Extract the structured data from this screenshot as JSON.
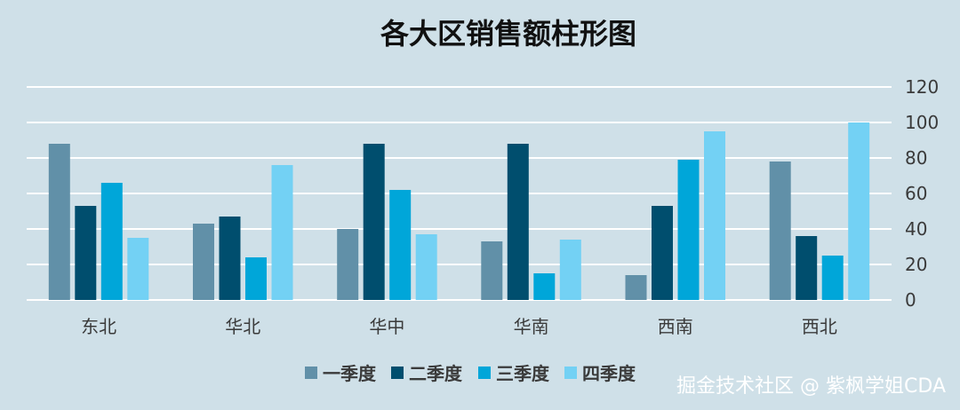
{
  "chart_data": {
    "type": "bar",
    "title": "各大区销售额柱形图",
    "xlabel": "",
    "ylabel": "",
    "categories": [
      "东北",
      "华北",
      "华中",
      "华南",
      "西南",
      "西北"
    ],
    "series": [
      {
        "name": "一季度",
        "color": "#6190a8",
        "values": [
          88,
          43,
          40,
          33,
          14,
          78
        ]
      },
      {
        "name": "二季度",
        "color": "#004e6e",
        "values": [
          53,
          47,
          88,
          88,
          53,
          36
        ]
      },
      {
        "name": "三季度",
        "color": "#00a6d9",
        "values": [
          66,
          24,
          62,
          15,
          79,
          25
        ]
      },
      {
        "name": "四季度",
        "color": "#73d1f4",
        "values": [
          35,
          76,
          37,
          34,
          95,
          100
        ]
      }
    ],
    "ylim": [
      0,
      120
    ],
    "yticks": [
      0,
      20,
      40,
      60,
      80,
      100,
      120
    ],
    "grid": true,
    "legend_position": "bottom",
    "axis_side": "right"
  },
  "watermark": "掘金技术社区 @ 紫枫学姐CDA"
}
